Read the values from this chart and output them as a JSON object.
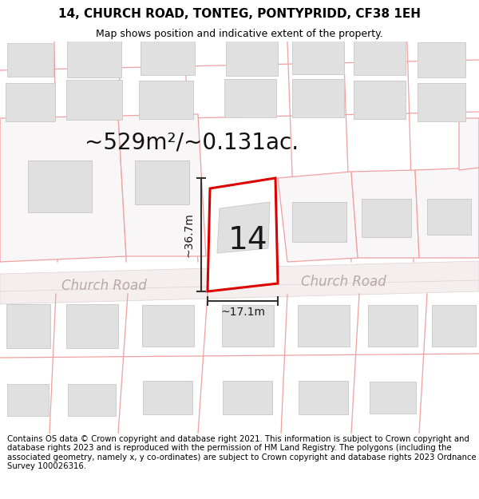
{
  "title": "14, CHURCH ROAD, TONTEG, PONTYPRIDD, CF38 1EH",
  "subtitle": "Map shows position and indicative extent of the property.",
  "footer": "Contains OS data © Crown copyright and database right 2021. This information is subject to Crown copyright and database rights 2023 and is reproduced with the permission of HM Land Registry. The polygons (including the associated geometry, namely x, y co-ordinates) are subject to Crown copyright and database rights 2023 Ordnance Survey 100026316.",
  "area_text": "~529m²/~0.131ac.",
  "label_number": "14",
  "dim_height": "~36.7m",
  "dim_width": "~17.1m",
  "road_label_left": "Church Road",
  "road_label_right": "Church Road",
  "bg_color": "#ffffff",
  "map_bg": "#ffffff",
  "plot_fill": "#ffffff",
  "plot_stroke": "#dd0000",
  "building_fill": "#e0e0e0",
  "building_stroke": "#cccccc",
  "plot_line_color": "#f0a0a0",
  "road_fill": "#f5eeee",
  "road_edge": "#e0d0d0",
  "dim_line_color": "#333333",
  "road_text_color": "#b8a8a8",
  "title_fontsize": 11,
  "subtitle_fontsize": 9,
  "footer_fontsize": 7.3,
  "area_fontsize": 20,
  "label_fontsize": 28,
  "dim_fontsize": 10,
  "road_fontsize": 12
}
